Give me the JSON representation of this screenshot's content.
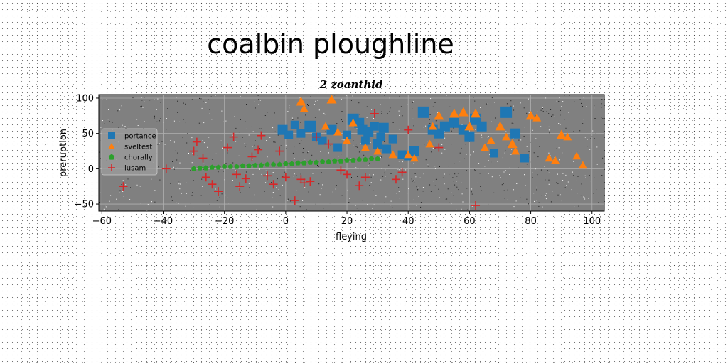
{
  "chart_data": {
    "type": "scatter",
    "title": "coalbin ploughline",
    "subtitle": "2 zoanthid",
    "xlabel": "fleying",
    "ylabel": "preruption",
    "xlim": [
      -61,
      104
    ],
    "ylim": [
      -60,
      105
    ],
    "xticks": [
      "−60",
      "−40",
      "−20",
      "0",
      "20",
      "40",
      "60",
      "80",
      "100"
    ],
    "yticks": [
      "−50",
      "0",
      "50",
      "100"
    ],
    "xtick_values": [
      -60,
      -40,
      -20,
      0,
      20,
      40,
      60,
      80,
      100
    ],
    "ytick_values": [
      -50,
      0,
      50,
      100
    ],
    "grid": true,
    "legend_position": "center-left",
    "background": "#808080",
    "series": [
      {
        "name": "portance",
        "marker": "square",
        "color": "#1f77b4",
        "x": [
          -1,
          1,
          3,
          5,
          8,
          10,
          12,
          15,
          17,
          20,
          22,
          24,
          25,
          26,
          27,
          29,
          30,
          31,
          32,
          33,
          35,
          38,
          40,
          42,
          45,
          48,
          50,
          52,
          55,
          58,
          60,
          62,
          64,
          68,
          72,
          75,
          78
        ],
        "y": [
          55,
          48,
          62,
          50,
          60,
          45,
          40,
          55,
          30,
          48,
          70,
          65,
          55,
          40,
          52,
          60,
          35,
          45,
          58,
          28,
          42,
          20,
          18,
          25,
          80,
          55,
          50,
          60,
          65,
          55,
          45,
          70,
          60,
          22,
          80,
          50,
          15
        ],
        "size": [
          14,
          12,
          12,
          12,
          16,
          12,
          12,
          14,
          12,
          12,
          16,
          14,
          14,
          12,
          14,
          12,
          14,
          12,
          14,
          12,
          12,
          12,
          12,
          14,
          16,
          14,
          14,
          14,
          14,
          14,
          14,
          16,
          14,
          12,
          16,
          14,
          12
        ]
      },
      {
        "name": "sveltest",
        "marker": "triangle",
        "color": "#ff7f0e",
        "x": [
          5,
          6,
          15,
          13,
          17,
          20,
          22,
          26,
          30,
          35,
          40,
          42,
          47,
          48,
          50,
          55,
          58,
          60,
          62,
          65,
          67,
          70,
          72,
          74,
          75,
          80,
          82,
          86,
          88,
          90,
          92,
          95,
          97
        ],
        "y": [
          95,
          85,
          98,
          60,
          52,
          40,
          65,
          30,
          25,
          20,
          20,
          15,
          35,
          60,
          75,
          78,
          80,
          60,
          78,
          30,
          40,
          60,
          45,
          35,
          25,
          75,
          72,
          15,
          12,
          48,
          45,
          18,
          5
        ],
        "size": [
          14,
          12,
          14,
          12,
          12,
          12,
          12,
          12,
          12,
          12,
          12,
          12,
          12,
          12,
          14,
          14,
          14,
          14,
          14,
          12,
          12,
          14,
          12,
          14,
          12,
          14,
          12,
          12,
          12,
          14,
          12,
          12,
          12
        ]
      },
      {
        "name": "chorally",
        "marker": "pentagon",
        "color": "#2ca02c",
        "x": [
          -30,
          -28,
          -26,
          -24,
          -22,
          -20,
          -18,
          -16,
          -14,
          -12,
          -10,
          -8,
          -6,
          -4,
          -2,
          0,
          2,
          4,
          6,
          8,
          10,
          12,
          14,
          16,
          18,
          20,
          22,
          24,
          26,
          28,
          30
        ],
        "y": [
          0,
          1,
          1,
          2,
          2,
          3,
          3,
          3,
          4,
          4,
          5,
          5,
          6,
          6,
          6,
          7,
          7,
          8,
          8,
          9,
          9,
          10,
          10,
          11,
          11,
          12,
          12,
          13,
          13,
          14,
          14
        ],
        "size": [
          8,
          8,
          8,
          8,
          8,
          8,
          8,
          8,
          8,
          8,
          8,
          8,
          8,
          8,
          8,
          8,
          8,
          8,
          8,
          8,
          8,
          8,
          8,
          8,
          8,
          8,
          8,
          8,
          8,
          8,
          8
        ]
      },
      {
        "name": "lusam",
        "marker": "plus",
        "color": "#d62728",
        "x": [
          -53,
          -39,
          -30,
          -29,
          -27,
          -26,
          -24,
          -22,
          -19,
          -16,
          -15,
          -13,
          -11,
          -9,
          -8,
          -6,
          -4,
          -2,
          0,
          3,
          5,
          6,
          8,
          10,
          14,
          18,
          20,
          24,
          26,
          29,
          38,
          40,
          50,
          62,
          36,
          -17
        ],
        "y": [
          -25,
          0,
          25,
          38,
          15,
          -12,
          -22,
          -32,
          30,
          -8,
          -25,
          -14,
          17,
          27,
          47,
          -10,
          -22,
          25,
          -12,
          -45,
          -15,
          -20,
          -18,
          45,
          35,
          -2,
          -8,
          -24,
          -12,
          78,
          -5,
          55,
          30,
          -52,
          -15,
          45
        ],
        "size": [
          12,
          12,
          12,
          12,
          12,
          12,
          12,
          12,
          12,
          12,
          12,
          12,
          12,
          12,
          12,
          12,
          12,
          12,
          12,
          12,
          12,
          12,
          12,
          12,
          12,
          12,
          12,
          12,
          12,
          12,
          12,
          12,
          12,
          12,
          12,
          12
        ]
      }
    ]
  }
}
